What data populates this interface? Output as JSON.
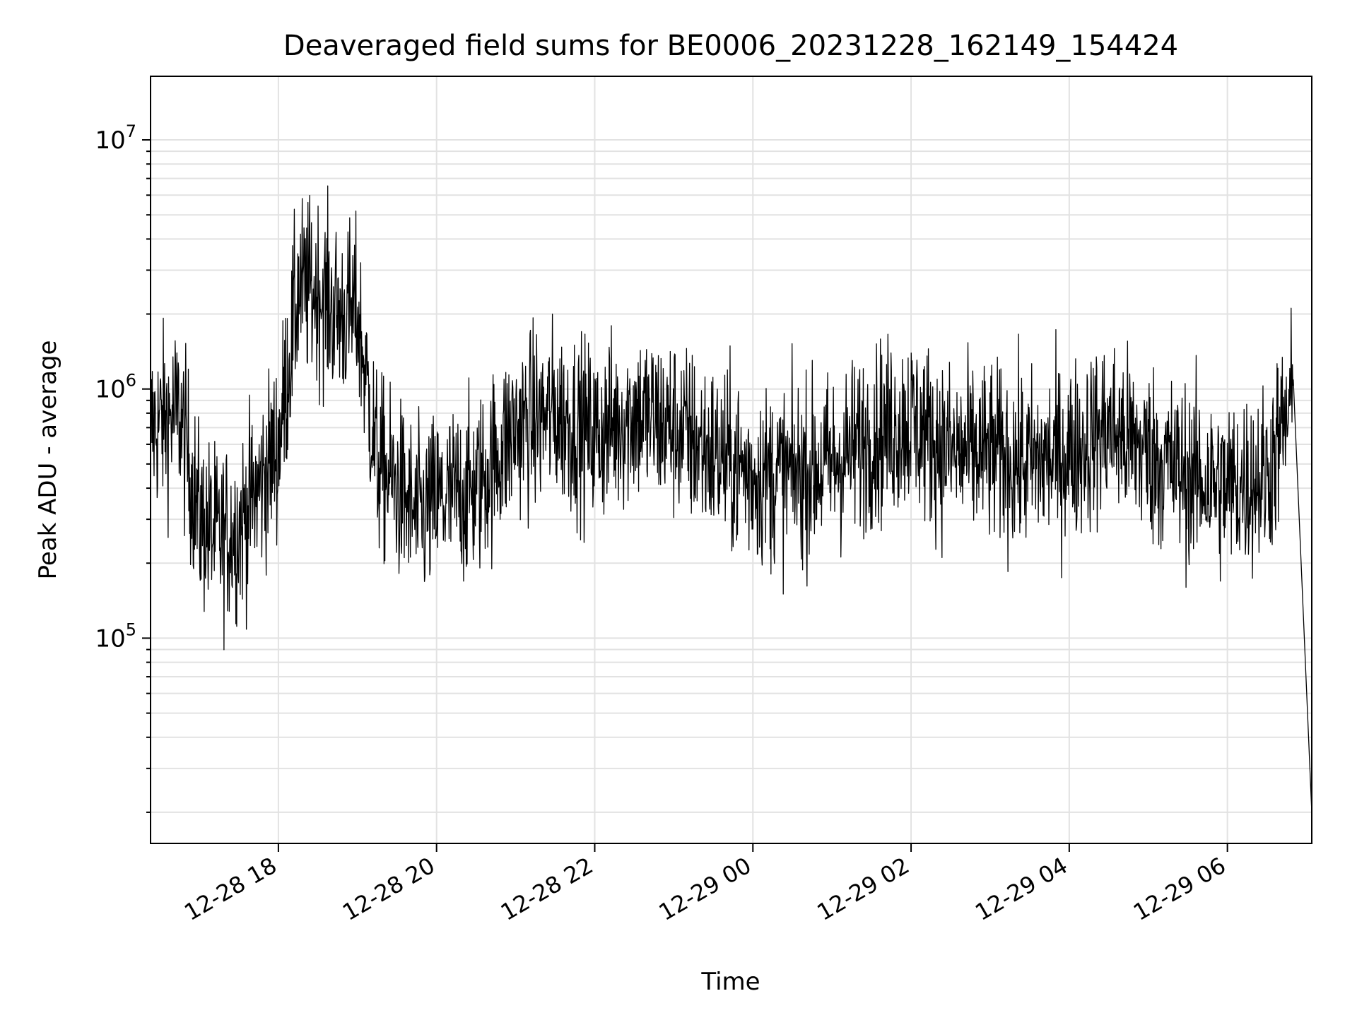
{
  "chart_data": {
    "type": "line",
    "title": "Deaveraged field sums for BE0006_20231228_162149_154424",
    "xlabel": "Time",
    "ylabel": "Peak ADU - average",
    "yscale": "log",
    "xlim": [
      "2023-12-28 16:23",
      "2023-12-29 07:04"
    ],
    "ylim": [
      15000,
      18000000
    ],
    "grid": true,
    "line_color": "#000000",
    "x_ticks": [
      {
        "value": "2023-12-28 18:00",
        "label": "12-28 18"
      },
      {
        "value": "2023-12-28 20:00",
        "label": "12-28 20"
      },
      {
        "value": "2023-12-28 22:00",
        "label": "12-28 22"
      },
      {
        "value": "2023-12-29 00:00",
        "label": "12-29 00"
      },
      {
        "value": "2023-12-29 02:00",
        "label": "12-29 02"
      },
      {
        "value": "2023-12-29 04:00",
        "label": "12-29 04"
      },
      {
        "value": "2023-12-29 06:00",
        "label": "12-29 06"
      }
    ],
    "y_ticks": [
      {
        "value": 100000,
        "base": "10",
        "exp": "5"
      },
      {
        "value": 1000000,
        "base": "10",
        "exp": "6"
      },
      {
        "value": 10000000,
        "base": "10",
        "exp": "7"
      }
    ],
    "series": [
      {
        "x": [
          "2023-12-28 16:23",
          "2023-12-28 16:45",
          "2023-12-28 17:00",
          "2023-12-28 17:15",
          "2023-12-28 17:30",
          "2023-12-28 17:45",
          "2023-12-28 18:00",
          "2023-12-28 18:15",
          "2023-12-28 18:30",
          "2023-12-28 18:45",
          "2023-12-28 19:00",
          "2023-12-28 19:15",
          "2023-12-28 19:30",
          "2023-12-28 19:45",
          "2023-12-28 20:00",
          "2023-12-28 20:30",
          "2023-12-28 21:00",
          "2023-12-28 21:30",
          "2023-12-28 22:00",
          "2023-12-28 22:30",
          "2023-12-28 23:00",
          "2023-12-28 23:30",
          "2023-12-29 00:00",
          "2023-12-29 00:30",
          "2023-12-29 01:00",
          "2023-12-29 01:30",
          "2023-12-29 02:00",
          "2023-12-29 02:30",
          "2023-12-29 03:00",
          "2023-12-29 03:30",
          "2023-12-29 04:00",
          "2023-12-29 04:30",
          "2023-12-29 05:00",
          "2023-12-29 05:30",
          "2023-12-29 06:00",
          "2023-12-29 06:30",
          "2023-12-29 06:50",
          "2023-12-29 07:04"
        ],
        "y": [
          700000,
          800000,
          300000,
          250000,
          280000,
          400000,
          600000,
          2500000,
          2500000,
          2000000,
          2000000,
          500000,
          400000,
          300000,
          350000,
          400000,
          700000,
          800000,
          650000,
          800000,
          700000,
          550000,
          450000,
          450000,
          500000,
          650000,
          750000,
          550000,
          550000,
          500000,
          550000,
          700000,
          550000,
          450000,
          400000,
          450000,
          900000,
          20000
        ]
      }
    ]
  }
}
